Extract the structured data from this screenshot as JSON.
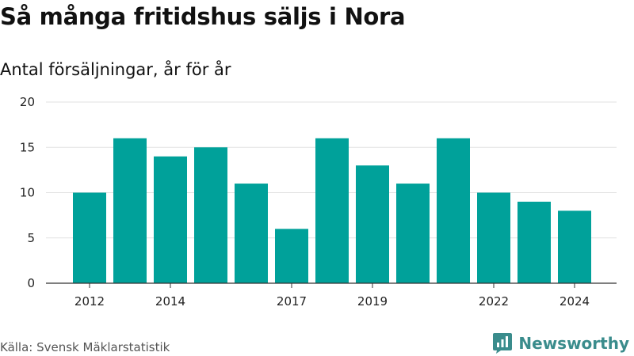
{
  "chart_data": {
    "type": "bar",
    "title": "Så många fritidshus säljs i Nora",
    "subtitle": "Antal försäljningar, år för år",
    "categories": [
      "2012",
      "2013",
      "2014",
      "2015",
      "2016",
      "2017",
      "2018",
      "2019",
      "2020",
      "2021",
      "2022",
      "2023",
      "2024"
    ],
    "values": [
      10,
      16,
      14,
      15,
      11,
      6,
      16,
      13,
      11,
      16,
      10,
      9,
      8
    ],
    "x_tick_labels": [
      "2012",
      "2014",
      "2017",
      "2019",
      "2022",
      "2024"
    ],
    "y_ticks": [
      0,
      5,
      10,
      15,
      20
    ],
    "ylim": [
      0,
      20
    ],
    "xlabel": "",
    "ylabel": "",
    "grid": true,
    "bar_color": "#00a19a",
    "gridline_color": "#e2e2e2"
  },
  "source": "Källa: Svensk Mäklarstatistik",
  "brand": {
    "name": "Newsworthy",
    "icon": "newsworthy-logo-icon",
    "color": "#3a8c8c"
  }
}
